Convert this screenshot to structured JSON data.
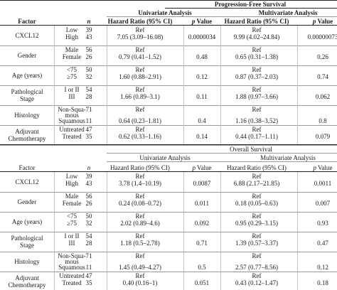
{
  "pfs": {
    "title": "Progression-Free Survival",
    "univariate": "Univariate Analysis",
    "multivariate": "Multivariate Analysis",
    "factor_header": "Factor",
    "n_header": "n",
    "hr_header": "Hazard Ratio (95% CI)",
    "p_header": "p Value",
    "rows": [
      {
        "factor": "CXCL12",
        "level": "Low",
        "n": "39",
        "uhr": "Ref",
        "up": "",
        "mhr": "Ref",
        "mp": ""
      },
      {
        "factor": "",
        "level": "High",
        "n": "43",
        "uhr": "7.05 (3.09–16.08)",
        "up": "0.0000034",
        "mhr": "9.99 (4.02–24.84)",
        "mp": "0.00000073"
      },
      {
        "factor": "Gender",
        "level": "Male",
        "n": "56",
        "uhr": "Ref",
        "up": "",
        "mhr": "Ref",
        "mp": ""
      },
      {
        "factor": "",
        "level": "Female",
        "n": "26",
        "uhr": "0.79 (0.41–1.52)",
        "up": "0.48",
        "mhr": "0.65 (0.31–1.38)",
        "mp": "0.26"
      },
      {
        "factor": "Age (years)",
        "level": "<75",
        "n": "50",
        "uhr": "Ref",
        "up": "",
        "mhr": "Ref",
        "mp": ""
      },
      {
        "factor": "",
        "level": "≥75",
        "n": "32",
        "uhr": "1.60 (0.88–2.91)",
        "up": "0.12",
        "mhr": "0.87 (0.37–2.03)",
        "mp": "0.74"
      },
      {
        "factor": "Pathological",
        "level": "I or II",
        "n": "54",
        "uhr": "Ref",
        "up": "",
        "mhr": "Ref",
        "mp": ""
      },
      {
        "factor": "Stage",
        "level": "III",
        "n": "28",
        "uhr": "1.66 (0.89–3.1)",
        "up": "0.11",
        "mhr": "1.88 (0.97–3.66)",
        "mp": "0.062"
      },
      {
        "factor": "Histology",
        "level": "Non-Squa-",
        "level2": "mous",
        "n": "71",
        "uhr": "Ref",
        "up": "",
        "mhr": "Ref",
        "mp": ""
      },
      {
        "factor": "",
        "level": "Squamous",
        "n": "11",
        "uhr": "0.64 (0.23–1.81)",
        "up": "0.4",
        "mhr": "1.16 (0.38–3.52)",
        "mp": "0.8"
      },
      {
        "factor": "Adjuvant",
        "level": "Untreated",
        "n": "47",
        "uhr": "Ref",
        "up": "",
        "mhr": "Ref",
        "mp": ""
      },
      {
        "factor": "Chemotherapy",
        "level": "Treated",
        "n": "35",
        "uhr": "0.62 (0.33–1.16)",
        "up": "0.14",
        "mhr": "0.44 (0.17–1.11)",
        "mp": "0.079"
      }
    ]
  },
  "os": {
    "title": "Overall Survival",
    "univariate": "Univariate Analysis",
    "multivariate": "Multivariate Analysis",
    "factor_header": "Factor",
    "n_header": "n",
    "hr_header": "Hazard Ratio (95% CI)",
    "p_header": "p Value",
    "rows": [
      {
        "factor": "CXCL12",
        "level": "Low",
        "n": "39",
        "uhr": "Ref",
        "up": "",
        "mhr": "Ref",
        "mp": ""
      },
      {
        "factor": "",
        "level": "High",
        "n": "43",
        "uhr": "3.78 (1.4–10.19)",
        "up": "0.0087",
        "mhr": "6.88 (2.17–21.85)",
        "mp": "0.0011"
      },
      {
        "factor": "Gender",
        "level": "Male",
        "n": "56",
        "uhr": "Ref",
        "up": "",
        "mhr": "Ref",
        "mp": ""
      },
      {
        "factor": "",
        "level": "Female",
        "n": "26",
        "uhr": "0.24 (0.08–0.72)",
        "up": "0.011",
        "mhr": "0.18 (0.05–0.63)",
        "mp": "0.007"
      },
      {
        "factor": "Age (years)",
        "level": "<75",
        "n": "50",
        "uhr": "Ref",
        "up": "",
        "mhr": "Ref",
        "mp": ""
      },
      {
        "factor": "",
        "level": "≥75",
        "n": "32",
        "uhr": "2.02 (0.89–4.6)",
        "up": "0.092",
        "mhr": "0.95 (0.29–3.15)",
        "mp": "0.93"
      },
      {
        "factor": "Pathological",
        "level": "I or II",
        "n": "54",
        "uhr": "Ref",
        "up": "",
        "mhr": "Ref",
        "mp": ""
      },
      {
        "factor": "Stage",
        "level": "III",
        "n": "28",
        "uhr": "1.18 (0.5–2.78)",
        "up": "0.71",
        "mhr": "1.39 (0.57–3.37)",
        "mp": "0.47"
      },
      {
        "factor": "Histology",
        "level": "Non-Squa-",
        "level2": "mous",
        "n": "71",
        "uhr": "Ref",
        "up": "",
        "mhr": "Ref",
        "mp": ""
      },
      {
        "factor": "",
        "level": "Squamous",
        "n": "11",
        "uhr": "1.45 (0.49–4.27)",
        "up": "0.5",
        "mhr": "2.57 (0.77–8.56)",
        "mp": "0.12"
      },
      {
        "factor": "Adjuvant",
        "level": "Untreated",
        "n": "47",
        "uhr": "Ref",
        "up": "",
        "mhr": "Ref",
        "mp": ""
      },
      {
        "factor": "Chemotherapy",
        "level": "Treated",
        "n": "35",
        "uhr": "0.40 (0.16–1)",
        "up": "0.051",
        "mhr": "0.43 (0.12–1.47)",
        "mp": "0.18"
      }
    ]
  }
}
